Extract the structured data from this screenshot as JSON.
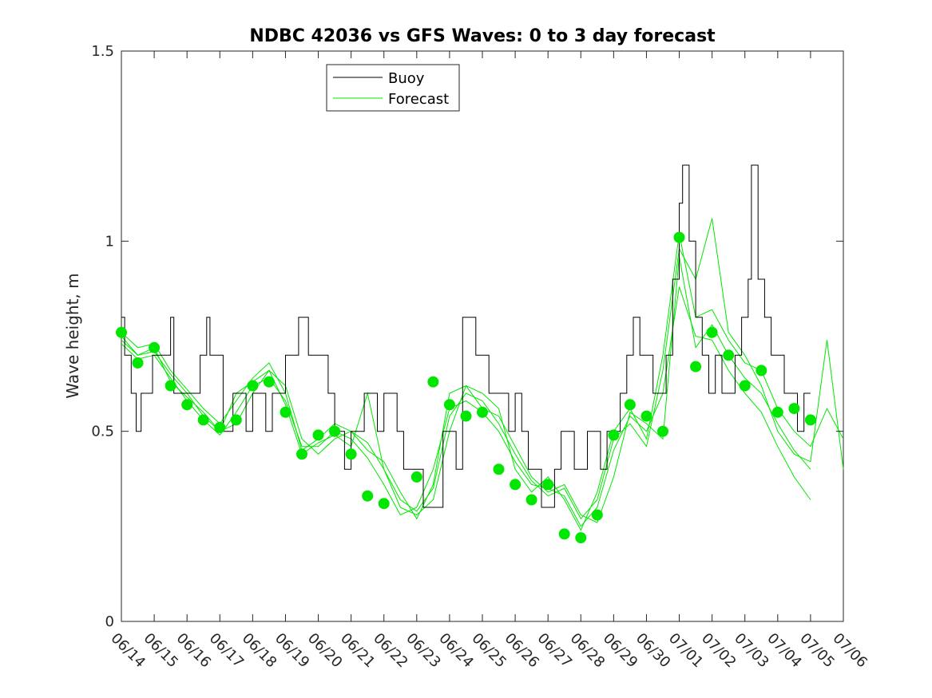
{
  "chart_data": {
    "type": "line",
    "title": "NDBC 42036 vs GFS Waves: 0 to 3 day forecast",
    "xlabel": "",
    "ylabel": "Wave height, m",
    "xlim": [
      0,
      22
    ],
    "ylim": [
      0,
      1.5
    ],
    "yticks": [
      0,
      0.5,
      1,
      1.5
    ],
    "ytick_labels": [
      "0",
      "0.5",
      "1",
      "1.5"
    ],
    "x_tick_labels": [
      "06/14",
      "06/15",
      "06/16",
      "06/17",
      "06/18",
      "06/19",
      "06/20",
      "06/21",
      "06/22",
      "06/23",
      "06/24",
      "06/25",
      "06/26",
      "06/27",
      "06/28",
      "06/29",
      "06/30",
      "07/01",
      "07/02",
      "07/03",
      "07/04",
      "07/05",
      "07/06"
    ],
    "grid": false,
    "legend": {
      "position": "top-left",
      "entries": [
        "Buoy",
        "Forecast"
      ]
    },
    "colors": {
      "buoy": "#000000",
      "forecast": "#00e600",
      "axes": "#262626"
    },
    "buoy_series": {
      "name": "Buoy",
      "points": [
        [
          0,
          0.8
        ],
        [
          0.1,
          0.7
        ],
        [
          0.2,
          0.7
        ],
        [
          0.3,
          0.6
        ],
        [
          0.45,
          0.5
        ],
        [
          0.6,
          0.6
        ],
        [
          0.8,
          0.6
        ],
        [
          0.95,
          0.7
        ],
        [
          1.3,
          0.7
        ],
        [
          1.5,
          0.8
        ],
        [
          1.6,
          0.6
        ],
        [
          2.1,
          0.6
        ],
        [
          2.3,
          0.6
        ],
        [
          2.4,
          0.7
        ],
        [
          2.6,
          0.8
        ],
        [
          2.7,
          0.7
        ],
        [
          2.9,
          0.7
        ],
        [
          3.1,
          0.5
        ],
        [
          3.3,
          0.5
        ],
        [
          3.4,
          0.6
        ],
        [
          3.6,
          0.6
        ],
        [
          3.8,
          0.5
        ],
        [
          4,
          0.6
        ],
        [
          4.2,
          0.6
        ],
        [
          4.4,
          0.5
        ],
        [
          4.6,
          0.6
        ],
        [
          4.8,
          0.6
        ],
        [
          5,
          0.7
        ],
        [
          5.3,
          0.7
        ],
        [
          5.4,
          0.8
        ],
        [
          5.6,
          0.8
        ],
        [
          5.7,
          0.7
        ],
        [
          6,
          0.7
        ],
        [
          6.3,
          0.6
        ],
        [
          6.5,
          0.5
        ],
        [
          6.8,
          0.4
        ],
        [
          7,
          0.5
        ],
        [
          7.2,
          0.5
        ],
        [
          7.4,
          0.6
        ],
        [
          7.6,
          0.6
        ],
        [
          7.8,
          0.5
        ],
        [
          8,
          0.6
        ],
        [
          8.2,
          0.6
        ],
        [
          8.4,
          0.5
        ],
        [
          8.6,
          0.4
        ],
        [
          9,
          0.4
        ],
        [
          9.2,
          0.3
        ],
        [
          9.5,
          0.3
        ],
        [
          9.7,
          0.3
        ],
        [
          9.8,
          0.5
        ],
        [
          10,
          0.5
        ],
        [
          10.2,
          0.4
        ],
        [
          10.4,
          0.8
        ],
        [
          10.6,
          0.8
        ],
        [
          10.8,
          0.7
        ],
        [
          11,
          0.7
        ],
        [
          11.2,
          0.6
        ],
        [
          11.5,
          0.6
        ],
        [
          11.8,
          0.5
        ],
        [
          12,
          0.6
        ],
        [
          12.2,
          0.5
        ],
        [
          12.4,
          0.4
        ],
        [
          12.6,
          0.4
        ],
        [
          12.8,
          0.3
        ],
        [
          13,
          0.3
        ],
        [
          13.2,
          0.4
        ],
        [
          13.4,
          0.5
        ],
        [
          13.6,
          0.5
        ],
        [
          13.8,
          0.4
        ],
        [
          14,
          0.4
        ],
        [
          14.2,
          0.5
        ],
        [
          14.4,
          0.5
        ],
        [
          14.6,
          0.4
        ],
        [
          14.8,
          0.5
        ],
        [
          15,
          0.5
        ],
        [
          15.2,
          0.6
        ],
        [
          15.4,
          0.7
        ],
        [
          15.6,
          0.8
        ],
        [
          15.8,
          0.7
        ],
        [
          16,
          0.7
        ],
        [
          16.2,
          0.6
        ],
        [
          16.4,
          0.6
        ],
        [
          16.6,
          0.7
        ],
        [
          16.8,
          0.9
        ],
        [
          17,
          1.1
        ],
        [
          17.1,
          1.2
        ],
        [
          17.3,
          1.0
        ],
        [
          17.5,
          0.8
        ],
        [
          17.7,
          0.7
        ],
        [
          17.9,
          0.6
        ],
        [
          18.1,
          0.7
        ],
        [
          18.3,
          0.6
        ],
        [
          18.5,
          0.6
        ],
        [
          18.7,
          0.7
        ],
        [
          18.9,
          0.8
        ],
        [
          19.1,
          0.9
        ],
        [
          19.2,
          1.2
        ],
        [
          19.4,
          0.9
        ],
        [
          19.6,
          0.8
        ],
        [
          19.8,
          0.7
        ],
        [
          20,
          0.7
        ],
        [
          20.2,
          0.6
        ],
        [
          20.4,
          0.6
        ],
        [
          20.6,
          0.5
        ],
        [
          20.8,
          0.6
        ],
        [
          21,
          0.6
        ]
      ]
    },
    "forecast_series": [
      {
        "name": "Forecast",
        "points": [
          [
            0,
            0.75
          ],
          [
            0.5,
            0.7
          ],
          [
            1,
            0.71
          ],
          [
            1.5,
            0.65
          ],
          [
            2,
            0.6
          ],
          [
            2.5,
            0.54
          ],
          [
            3,
            0.5
          ],
          [
            3.5,
            0.52
          ],
          [
            4,
            0.6
          ],
          [
            4.5,
            0.66
          ],
          [
            5,
            0.62
          ],
          [
            5.5,
            0.48
          ],
          [
            6,
            0.44
          ],
          [
            6.5,
            0.48
          ],
          [
            7,
            0.5
          ],
          [
            7.5,
            0.47
          ],
          [
            8,
            0.4
          ],
          [
            8.5,
            0.3
          ],
          [
            9,
            0.28
          ],
          [
            9.5,
            0.32
          ],
          [
            10,
            0.5
          ],
          [
            10.5,
            0.62
          ],
          [
            11,
            0.56
          ],
          [
            11.5,
            0.54
          ],
          [
            12,
            0.46
          ],
          [
            12.5,
            0.38
          ],
          [
            13,
            0.34
          ],
          [
            13.5,
            0.36
          ],
          [
            14,
            0.28
          ],
          [
            14.5,
            0.26
          ],
          [
            15,
            0.38
          ],
          [
            15.5,
            0.55
          ],
          [
            16,
            0.52
          ],
          [
            16.5,
            0.48
          ],
          [
            17,
            0.96
          ],
          [
            17.5,
            0.72
          ],
          [
            18,
            0.78
          ],
          [
            18.5,
            0.7
          ],
          [
            19,
            0.64
          ],
          [
            19.5,
            0.6
          ],
          [
            20,
            0.52
          ],
          [
            20.5,
            0.45
          ],
          [
            21,
            0.4
          ]
        ]
      },
      {
        "name": "Forecast",
        "points": [
          [
            0,
            0.73
          ],
          [
            0.5,
            0.69
          ],
          [
            1,
            0.7
          ],
          [
            1.5,
            0.64
          ],
          [
            2,
            0.58
          ],
          [
            2.5,
            0.53
          ],
          [
            3,
            0.49
          ],
          [
            3.5,
            0.55
          ],
          [
            4,
            0.62
          ],
          [
            4.5,
            0.64
          ],
          [
            5,
            0.58
          ],
          [
            5.5,
            0.46
          ],
          [
            6,
            0.46
          ],
          [
            6.5,
            0.5
          ],
          [
            7,
            0.48
          ],
          [
            7.5,
            0.43
          ],
          [
            8,
            0.36
          ],
          [
            8.5,
            0.28
          ],
          [
            9,
            0.3
          ],
          [
            9.5,
            0.4
          ],
          [
            10,
            0.56
          ],
          [
            10.5,
            0.58
          ],
          [
            11,
            0.55
          ],
          [
            11.5,
            0.5
          ],
          [
            12,
            0.42
          ],
          [
            12.5,
            0.36
          ],
          [
            13,
            0.35
          ],
          [
            13.5,
            0.33
          ],
          [
            14,
            0.25
          ],
          [
            14.5,
            0.3
          ],
          [
            15,
            0.45
          ],
          [
            15.5,
            0.54
          ],
          [
            16,
            0.5
          ],
          [
            16.5,
            0.6
          ],
          [
            17,
            0.88
          ],
          [
            17.5,
            0.75
          ],
          [
            18,
            0.74
          ],
          [
            18.5,
            0.66
          ],
          [
            19,
            0.6
          ],
          [
            19.5,
            0.55
          ],
          [
            20,
            0.46
          ],
          [
            20.5,
            0.38
          ],
          [
            21,
            0.32
          ]
        ]
      },
      {
        "name": "Forecast",
        "points": [
          [
            0,
            0.76
          ],
          [
            0.5,
            0.72
          ],
          [
            1,
            0.73
          ],
          [
            1.5,
            0.66
          ],
          [
            2,
            0.61
          ],
          [
            2.5,
            0.56
          ],
          [
            3,
            0.52
          ],
          [
            3.5,
            0.58
          ],
          [
            4,
            0.64
          ],
          [
            4.5,
            0.68
          ],
          [
            5,
            0.6
          ],
          [
            5.5,
            0.45
          ],
          [
            6,
            0.48
          ],
          [
            6.5,
            0.52
          ],
          [
            7,
            0.5
          ],
          [
            7.5,
            0.45
          ],
          [
            8,
            0.42
          ],
          [
            8.5,
            0.34
          ],
          [
            9,
            0.27
          ],
          [
            9.5,
            0.36
          ],
          [
            10,
            0.6
          ],
          [
            10.5,
            0.62
          ],
          [
            11,
            0.6
          ],
          [
            11.5,
            0.56
          ],
          [
            12,
            0.4
          ],
          [
            12.5,
            0.34
          ],
          [
            13,
            0.38
          ],
          [
            13.5,
            0.32
          ],
          [
            14,
            0.24
          ],
          [
            14.5,
            0.34
          ],
          [
            15,
            0.5
          ],
          [
            15.5,
            0.56
          ],
          [
            16,
            0.48
          ],
          [
            16.5,
            0.7
          ],
          [
            17,
            1.02
          ],
          [
            17.5,
            0.8
          ],
          [
            18,
            0.82
          ],
          [
            18.5,
            0.74
          ],
          [
            19,
            0.68
          ],
          [
            19.5,
            0.66
          ],
          [
            20,
            0.56
          ],
          [
            20.5,
            0.5
          ],
          [
            21,
            0.46
          ],
          [
            21.5,
            0.56
          ],
          [
            22,
            0.48
          ]
        ]
      },
      {
        "name": "Forecast",
        "points": [
          [
            0,
            0.74
          ],
          [
            0.5,
            0.7
          ],
          [
            1,
            0.72
          ],
          [
            1.5,
            0.63
          ],
          [
            2,
            0.59
          ],
          [
            2.5,
            0.55
          ],
          [
            3,
            0.5
          ],
          [
            3.5,
            0.6
          ],
          [
            4,
            0.63
          ],
          [
            4.5,
            0.66
          ],
          [
            5,
            0.57
          ],
          [
            5.5,
            0.44
          ],
          [
            6,
            0.47
          ],
          [
            6.5,
            0.49
          ],
          [
            7,
            0.46
          ],
          [
            7.5,
            0.6
          ],
          [
            8,
            0.4
          ],
          [
            8.5,
            0.32
          ],
          [
            9,
            0.29
          ],
          [
            9.5,
            0.35
          ],
          [
            10,
            0.54
          ],
          [
            10.5,
            0.6
          ],
          [
            11,
            0.58
          ],
          [
            11.5,
            0.52
          ],
          [
            12,
            0.44
          ],
          [
            12.5,
            0.37
          ],
          [
            13,
            0.33
          ],
          [
            13.5,
            0.35
          ],
          [
            14,
            0.27
          ],
          [
            14.5,
            0.32
          ],
          [
            15,
            0.48
          ],
          [
            15.5,
            0.52
          ],
          [
            16,
            0.46
          ],
          [
            16.5,
            0.66
          ],
          [
            17,
            0.98
          ],
          [
            17.5,
            0.9
          ],
          [
            18,
            1.06
          ],
          [
            18.5,
            0.76
          ],
          [
            19,
            0.7
          ],
          [
            19.5,
            0.62
          ],
          [
            20,
            0.5
          ],
          [
            20.5,
            0.44
          ],
          [
            21,
            0.42
          ],
          [
            21.5,
            0.74
          ],
          [
            22,
            0.4
          ]
        ]
      }
    ],
    "daily_markers": {
      "name": "Forecast",
      "points": [
        [
          0,
          0.76
        ],
        [
          0.5,
          0.68
        ],
        [
          1,
          0.72
        ],
        [
          1.5,
          0.62
        ],
        [
          2,
          0.57
        ],
        [
          2.5,
          0.53
        ],
        [
          3,
          0.51
        ],
        [
          3.5,
          0.53
        ],
        [
          4,
          0.62
        ],
        [
          4.5,
          0.63
        ],
        [
          5,
          0.55
        ],
        [
          5.5,
          0.44
        ],
        [
          6,
          0.49
        ],
        [
          6.5,
          0.5
        ],
        [
          7,
          0.44
        ],
        [
          7.5,
          0.33
        ],
        [
          8,
          0.31
        ],
        [
          9,
          0.38
        ],
        [
          9.5,
          0.63
        ],
        [
          10,
          0.57
        ],
        [
          10.5,
          0.54
        ],
        [
          11,
          0.55
        ],
        [
          11.5,
          0.4
        ],
        [
          12,
          0.36
        ],
        [
          12.5,
          0.32
        ],
        [
          13,
          0.36
        ],
        [
          13.5,
          0.23
        ],
        [
          14,
          0.22
        ],
        [
          14.5,
          0.28
        ],
        [
          15,
          0.49
        ],
        [
          15.5,
          0.57
        ],
        [
          16,
          0.54
        ],
        [
          16.5,
          0.5
        ],
        [
          17,
          1.01
        ],
        [
          17.5,
          0.67
        ],
        [
          18,
          0.76
        ],
        [
          18.5,
          0.7
        ],
        [
          19,
          0.62
        ],
        [
          19.5,
          0.66
        ],
        [
          20,
          0.55
        ],
        [
          20.5,
          0.56
        ],
        [
          21,
          0.53
        ]
      ]
    }
  }
}
